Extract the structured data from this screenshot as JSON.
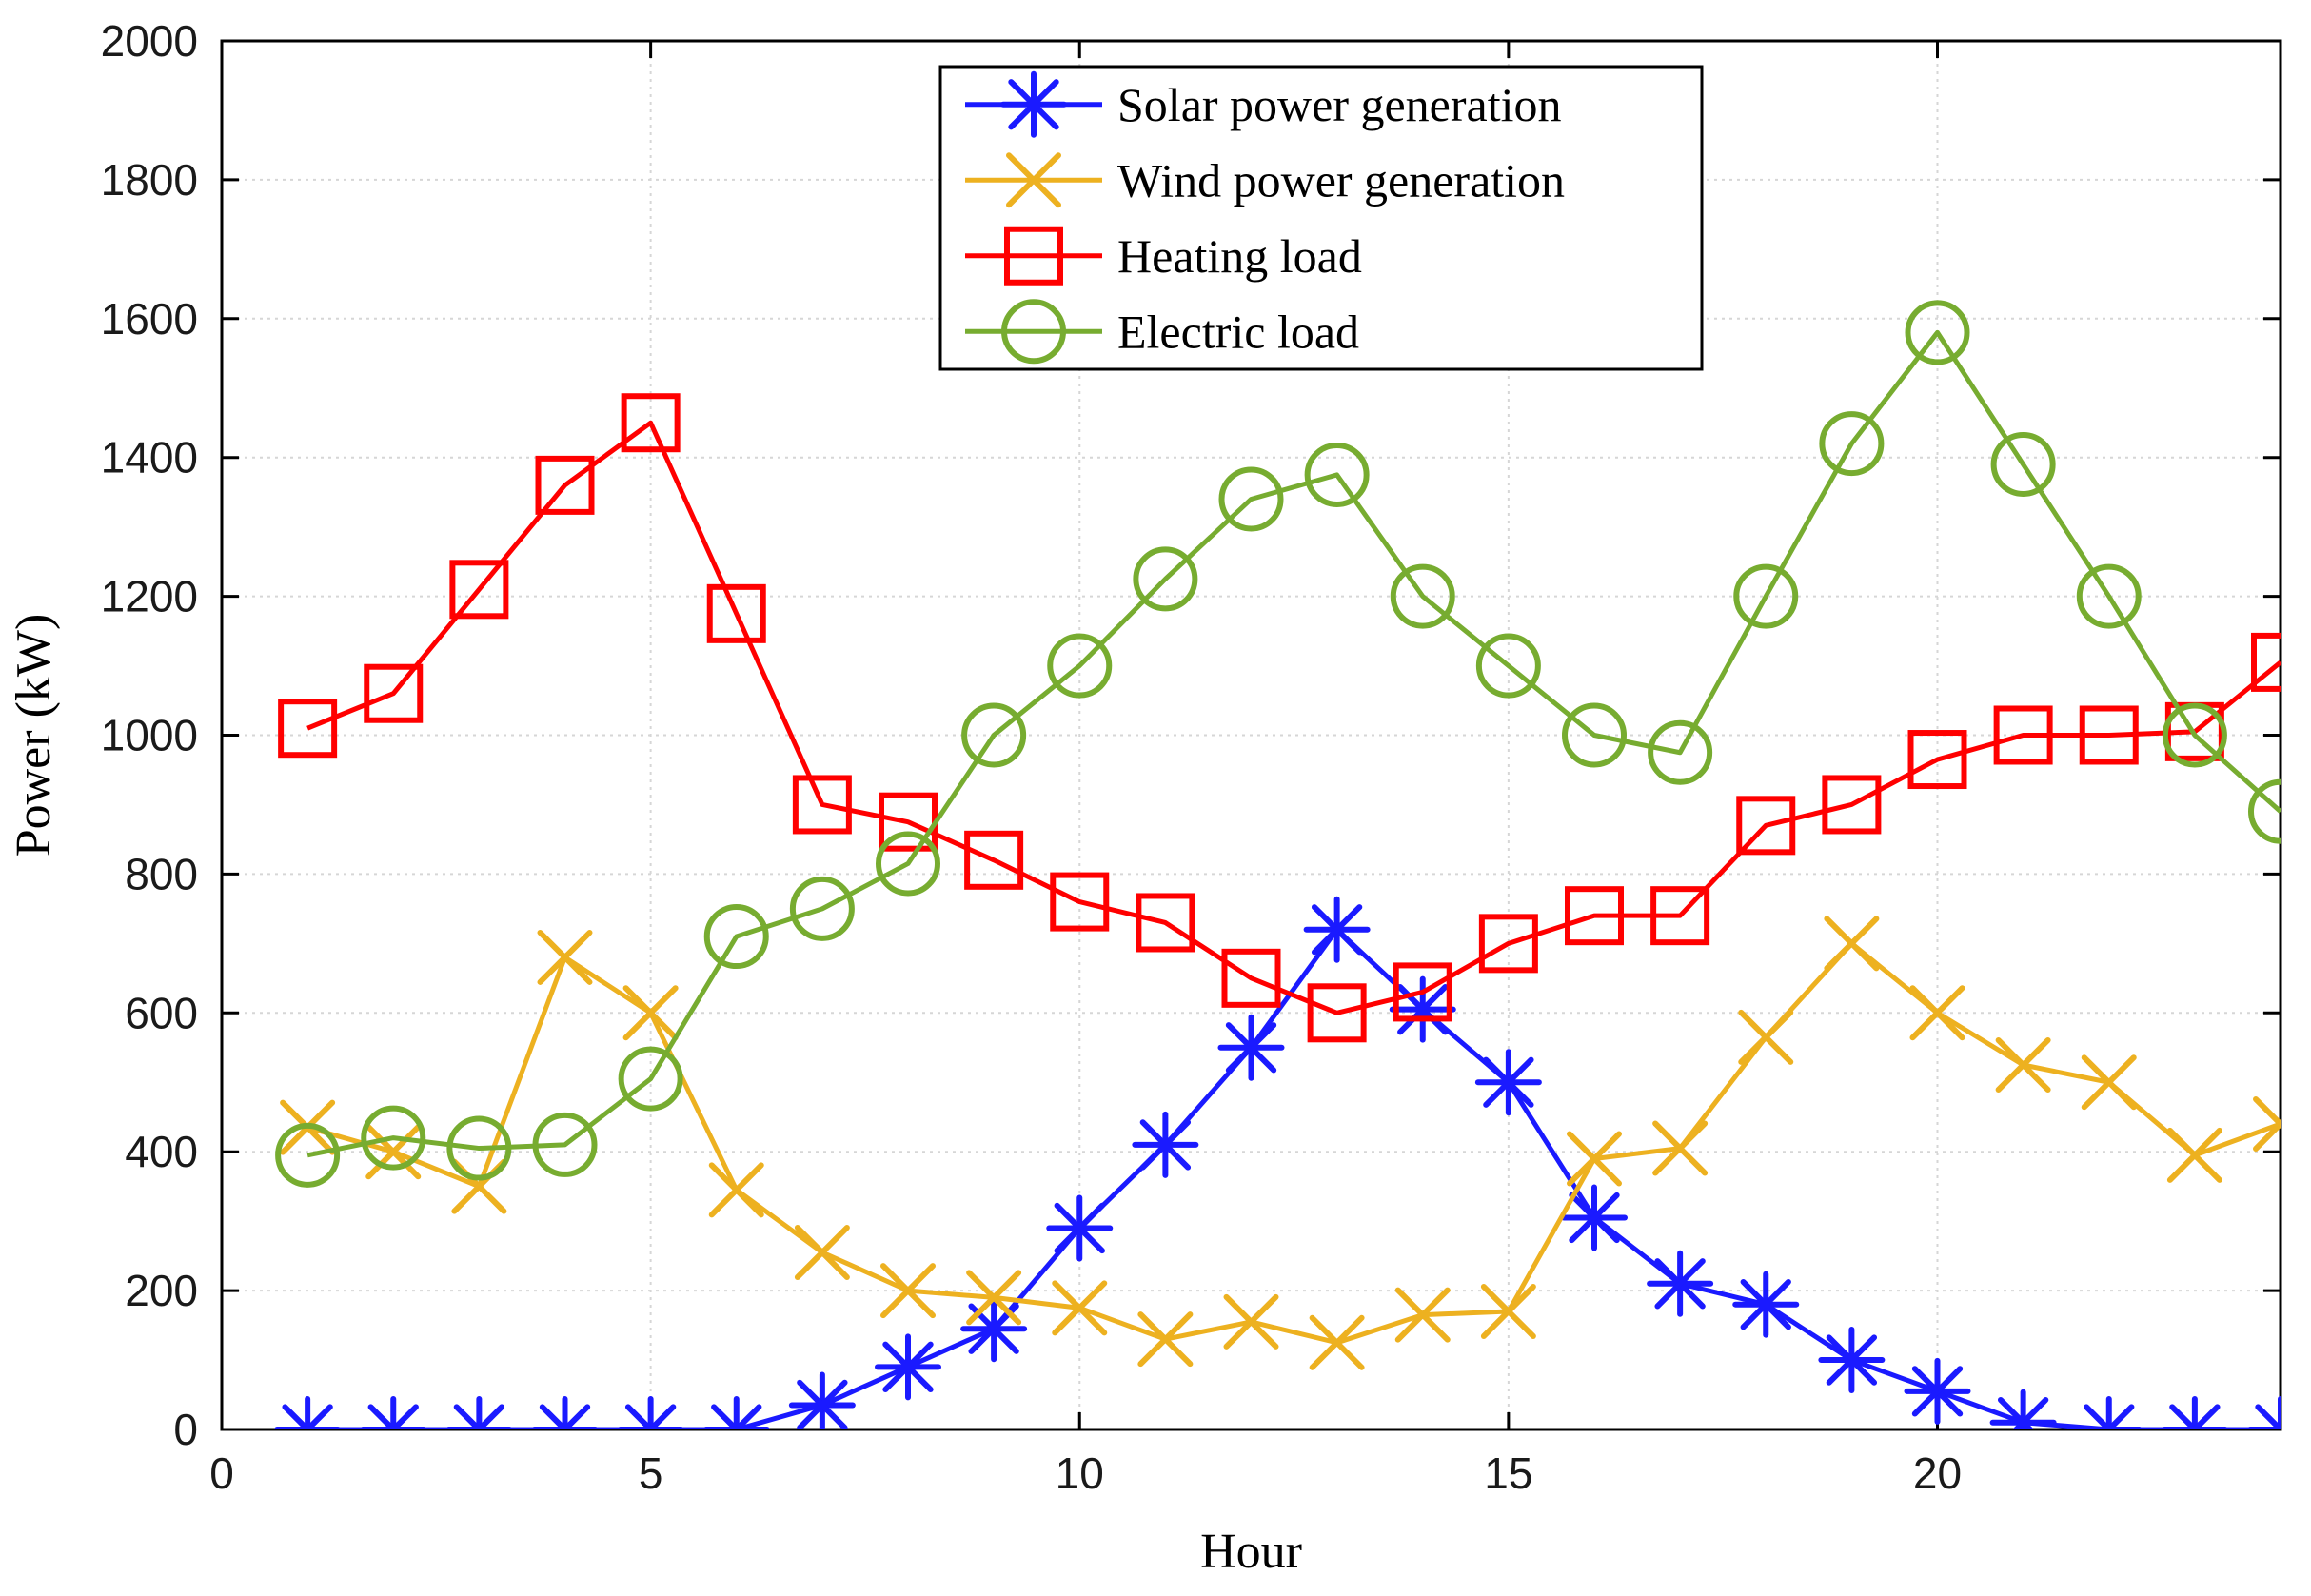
{
  "chart_data": {
    "type": "line",
    "title": "",
    "xlabel": "Hour",
    "ylabel": "Power (kW)",
    "xlim": [
      0,
      24
    ],
    "ylim": [
      0,
      2000
    ],
    "x_ticks": [
      0,
      5,
      10,
      15,
      20
    ],
    "y_ticks": [
      0,
      200,
      400,
      600,
      800,
      1000,
      1200,
      1400,
      1600,
      1800,
      2000
    ],
    "grid": true,
    "legend_position": "top-center-inside",
    "x": [
      1,
      2,
      3,
      4,
      5,
      6,
      7,
      8,
      9,
      10,
      11,
      12,
      13,
      14,
      15,
      16,
      17,
      18,
      19,
      20,
      21,
      22,
      23,
      24
    ],
    "series": [
      {
        "name": "Solar power generation",
        "marker": "asterisk",
        "color": "#1a1aff",
        "values": [
          0,
          0,
          0,
          0,
          0,
          0,
          35,
          90,
          145,
          290,
          410,
          550,
          720,
          605,
          500,
          305,
          210,
          180,
          100,
          55,
          10,
          0,
          0,
          0
        ]
      },
      {
        "name": "Wind power generation",
        "marker": "x",
        "color": "#EDB120",
        "values": [
          435,
          400,
          350,
          680,
          600,
          345,
          255,
          200,
          190,
          175,
          130,
          155,
          125,
          165,
          170,
          390,
          405,
          565,
          700,
          600,
          525,
          500,
          395,
          440
        ]
      },
      {
        "name": "Heating load",
        "marker": "square",
        "color": "#FF0000",
        "values": [
          1010,
          1060,
          1210,
          1360,
          1450,
          1175,
          900,
          875,
          820,
          760,
          730,
          650,
          600,
          630,
          700,
          740,
          740,
          870,
          900,
          965,
          1000,
          1000,
          1005,
          1105
        ]
      },
      {
        "name": "Electric load",
        "marker": "circle",
        "color": "#77AC30",
        "values": [
          395,
          420,
          405,
          410,
          505,
          710,
          750,
          815,
          1000,
          1100,
          1225,
          1340,
          1375,
          1200,
          1100,
          1000,
          975,
          1200,
          1420,
          1580,
          1390,
          1200,
          1000,
          890
        ]
      }
    ],
    "styles": {
      "grid_color": "#d6d6d6",
      "axis_color": "#000000",
      "background": "#ffffff"
    }
  }
}
